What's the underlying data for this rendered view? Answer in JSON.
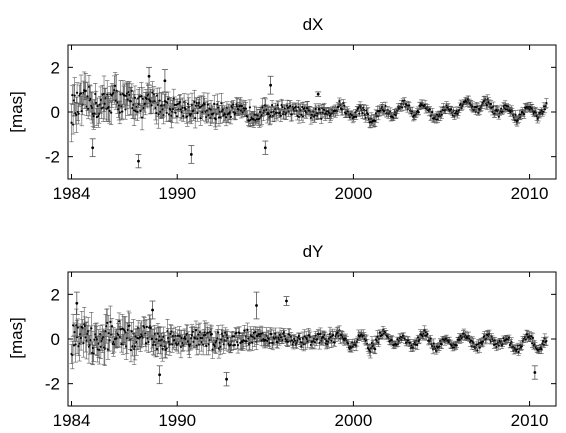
{
  "chart_data": [
    {
      "type": "scatter",
      "title": "dX",
      "ylabel": "[mas]",
      "xlim": [
        1983.8,
        2011.5
      ],
      "ylim": [
        -3,
        3
      ],
      "x_ticks": [
        1984,
        1990,
        2000,
        2010
      ],
      "y_ticks": [
        -2,
        0,
        2
      ],
      "grid": false,
      "error_bars": true,
      "marker_color": "#000000",
      "error_bar_color": "#555555",
      "series": [
        {
          "x": [
            1984.0,
            1984.6,
            1985.0,
            1985.5,
            1986.0,
            1986.5,
            1987.0,
            1987.5,
            1988.0,
            1988.5,
            1989.0,
            1990.0,
            1991.0,
            1992.0,
            1993.0,
            1994.0,
            1995.0,
            1996.0,
            1997.0,
            1998.0,
            1999.0,
            2000.0,
            2001.0,
            2002.0,
            2003.0,
            2004.0,
            2005.0,
            2006.0,
            2007.0,
            2008.0,
            2009.0,
            2010.0,
            2011.0
          ],
          "y": [
            0.1,
            0.3,
            0.5,
            0.2,
            0.4,
            0.7,
            0.3,
            0.6,
            0.2,
            0.5,
            0.3,
            0.2,
            0.1,
            0.0,
            0.1,
            -0.1,
            0.0,
            0.1,
            0.0,
            -0.1,
            0.1,
            0.0,
            -0.2,
            0.0,
            0.2,
            0.1,
            -0.1,
            0.2,
            0.3,
            0.2,
            -0.1,
            0.0,
            0.1
          ],
          "err": [
            0.9,
            0.8,
            0.8,
            0.7,
            0.8,
            0.7,
            0.7,
            0.7,
            0.6,
            0.6,
            0.6,
            0.5,
            0.5,
            0.5,
            0.4,
            0.4,
            0.4,
            0.3,
            0.3,
            0.3,
            0.3,
            0.2,
            0.3,
            0.2,
            0.2,
            0.2,
            0.2,
            0.2,
            0.2,
            0.2,
            0.2,
            0.2,
            0.2
          ]
        }
      ],
      "outliers": [
        {
          "x": 1985.2,
          "y": -1.6,
          "err": 0.4
        },
        {
          "x": 1987.8,
          "y": -2.2,
          "err": 0.3
        },
        {
          "x": 1988.4,
          "y": 1.6,
          "err": 0.4
        },
        {
          "x": 1989.3,
          "y": 1.4,
          "err": 0.5
        },
        {
          "x": 1990.8,
          "y": -1.9,
          "err": 0.4
        },
        {
          "x": 1995.3,
          "y": 1.2,
          "err": 0.4
        },
        {
          "x": 1995.0,
          "y": -1.6,
          "err": 0.3
        },
        {
          "x": 1998.0,
          "y": 0.8,
          "err": 0.1
        }
      ]
    },
    {
      "type": "scatter",
      "title": "dY",
      "ylabel": "[mas]",
      "xlim": [
        1983.8,
        2011.5
      ],
      "ylim": [
        -3,
        3
      ],
      "x_ticks": [
        1984,
        1990,
        2000,
        2010
      ],
      "y_ticks": [
        -2,
        0,
        2
      ],
      "grid": false,
      "error_bars": true,
      "marker_color": "#000000",
      "error_bar_color": "#555555",
      "series": [
        {
          "x": [
            1984.0,
            1984.6,
            1985.0,
            1985.5,
            1986.0,
            1986.5,
            1987.0,
            1987.5,
            1988.0,
            1988.5,
            1989.0,
            1990.0,
            1991.0,
            1992.0,
            1993.0,
            1994.0,
            1995.0,
            1996.0,
            1997.0,
            1998.0,
            1999.0,
            2000.0,
            2001.0,
            2002.0,
            2003.0,
            2004.0,
            2005.0,
            2006.0,
            2007.0,
            2008.0,
            2009.0,
            2010.0,
            2011.0
          ],
          "y": [
            -0.1,
            0.2,
            0.0,
            -0.3,
            0.1,
            0.3,
            0.2,
            0.0,
            0.1,
            0.2,
            -0.1,
            0.0,
            0.1,
            -0.1,
            0.0,
            0.1,
            0.0,
            0.1,
            -0.1,
            0.0,
            0.0,
            -0.1,
            -0.2,
            0.1,
            -0.2,
            0.1,
            -0.3,
            0.0,
            -0.2,
            0.0,
            -0.3,
            -0.1,
            -0.2
          ],
          "err": [
            0.9,
            0.8,
            0.8,
            0.7,
            0.8,
            0.7,
            0.7,
            0.7,
            0.6,
            0.6,
            0.6,
            0.5,
            0.5,
            0.5,
            0.4,
            0.4,
            0.4,
            0.3,
            0.3,
            0.3,
            0.3,
            0.2,
            0.3,
            0.2,
            0.2,
            0.2,
            0.2,
            0.2,
            0.2,
            0.2,
            0.2,
            0.2,
            0.2
          ]
        }
      ],
      "outliers": [
        {
          "x": 1984.3,
          "y": 1.6,
          "err": 0.5
        },
        {
          "x": 1988.6,
          "y": 1.3,
          "err": 0.4
        },
        {
          "x": 1989.0,
          "y": -1.6,
          "err": 0.4
        },
        {
          "x": 1992.8,
          "y": -1.8,
          "err": 0.3
        },
        {
          "x": 1994.5,
          "y": 1.5,
          "err": 0.6
        },
        {
          "x": 1996.2,
          "y": 1.7,
          "err": 0.2
        },
        {
          "x": 2010.3,
          "y": -1.5,
          "err": 0.3
        }
      ]
    }
  ]
}
